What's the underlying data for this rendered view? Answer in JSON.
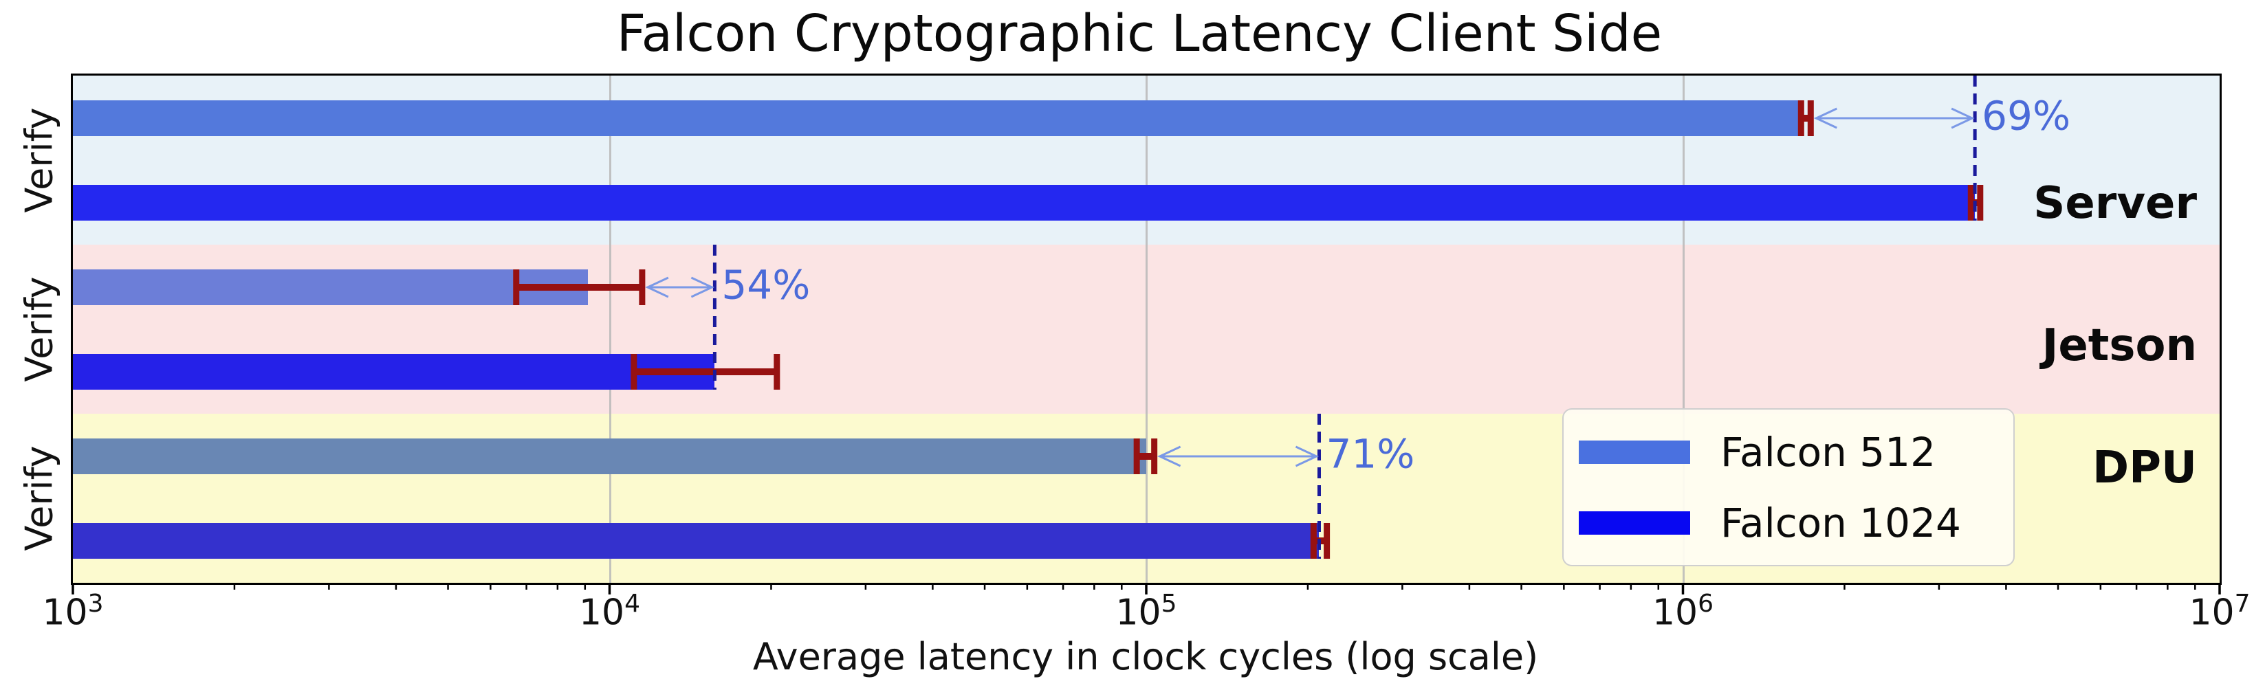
{
  "chart_data": {
    "type": "bar",
    "orientation": "horizontal",
    "title": "Falcon Cryptographic Latency Client Side",
    "xlabel": "Average latency in clock cycles (log scale)",
    "xscale": "log",
    "xlim": [
      1000,
      10000000
    ],
    "tick_exponents": [
      3,
      4,
      5,
      6,
      7
    ],
    "grid_exponents": [
      4,
      5,
      6
    ],
    "grid": "vertical-major-only",
    "legend": {
      "position": "lower right",
      "entries": [
        {
          "label": "Falcon 512",
          "color": "#4a71e0"
        },
        {
          "label": "Falcon 1024",
          "color": "#0808f2"
        }
      ]
    },
    "groups": [
      {
        "name": "Server",
        "band_color": "#e8f2f8",
        "row_label": "Verify",
        "annotation_text": "69%",
        "label_y": 296,
        "series": [
          {
            "name": "Falcon 512",
            "value": 1680000,
            "err": [
              1660000,
              1730000
            ],
            "color": "#5379dc"
          },
          {
            "name": "Falcon 1024",
            "value": 3500000,
            "err": [
              3440000,
              3580000
            ],
            "color": "#2428f0"
          }
        ]
      },
      {
        "name": "Jetson",
        "band_color": "#fbe4e4",
        "row_label": "Verify",
        "annotation_text": "54%",
        "label_y": 503,
        "series": [
          {
            "name": "Falcon 512",
            "value": 9100,
            "err": [
              6700,
              11500
            ],
            "color": "#6c7ed8"
          },
          {
            "name": "Falcon 1024",
            "value": 15700,
            "err": [
              11100,
              20500
            ],
            "color": "#2521e8"
          }
        ]
      },
      {
        "name": "DPU",
        "band_color": "#fcfacf",
        "row_label": "Verify",
        "annotation_text": "71%",
        "label_y": 681,
        "series": [
          {
            "name": "Falcon 512",
            "value": 100000,
            "err": [
              96000,
              103500
            ],
            "color": "#6987b4"
          },
          {
            "name": "Falcon 1024",
            "value": 210000,
            "err": [
              205000,
              217000
            ],
            "color": "#3431cd"
          }
        ]
      }
    ],
    "style_colors": {
      "error_bar": "#971111",
      "dashed_line": "#1a1a9c",
      "arrow": "#7b99e6",
      "annotation_text": "#4a6ad8",
      "gridline": "#b9b9b9",
      "spine": "#000000"
    }
  }
}
